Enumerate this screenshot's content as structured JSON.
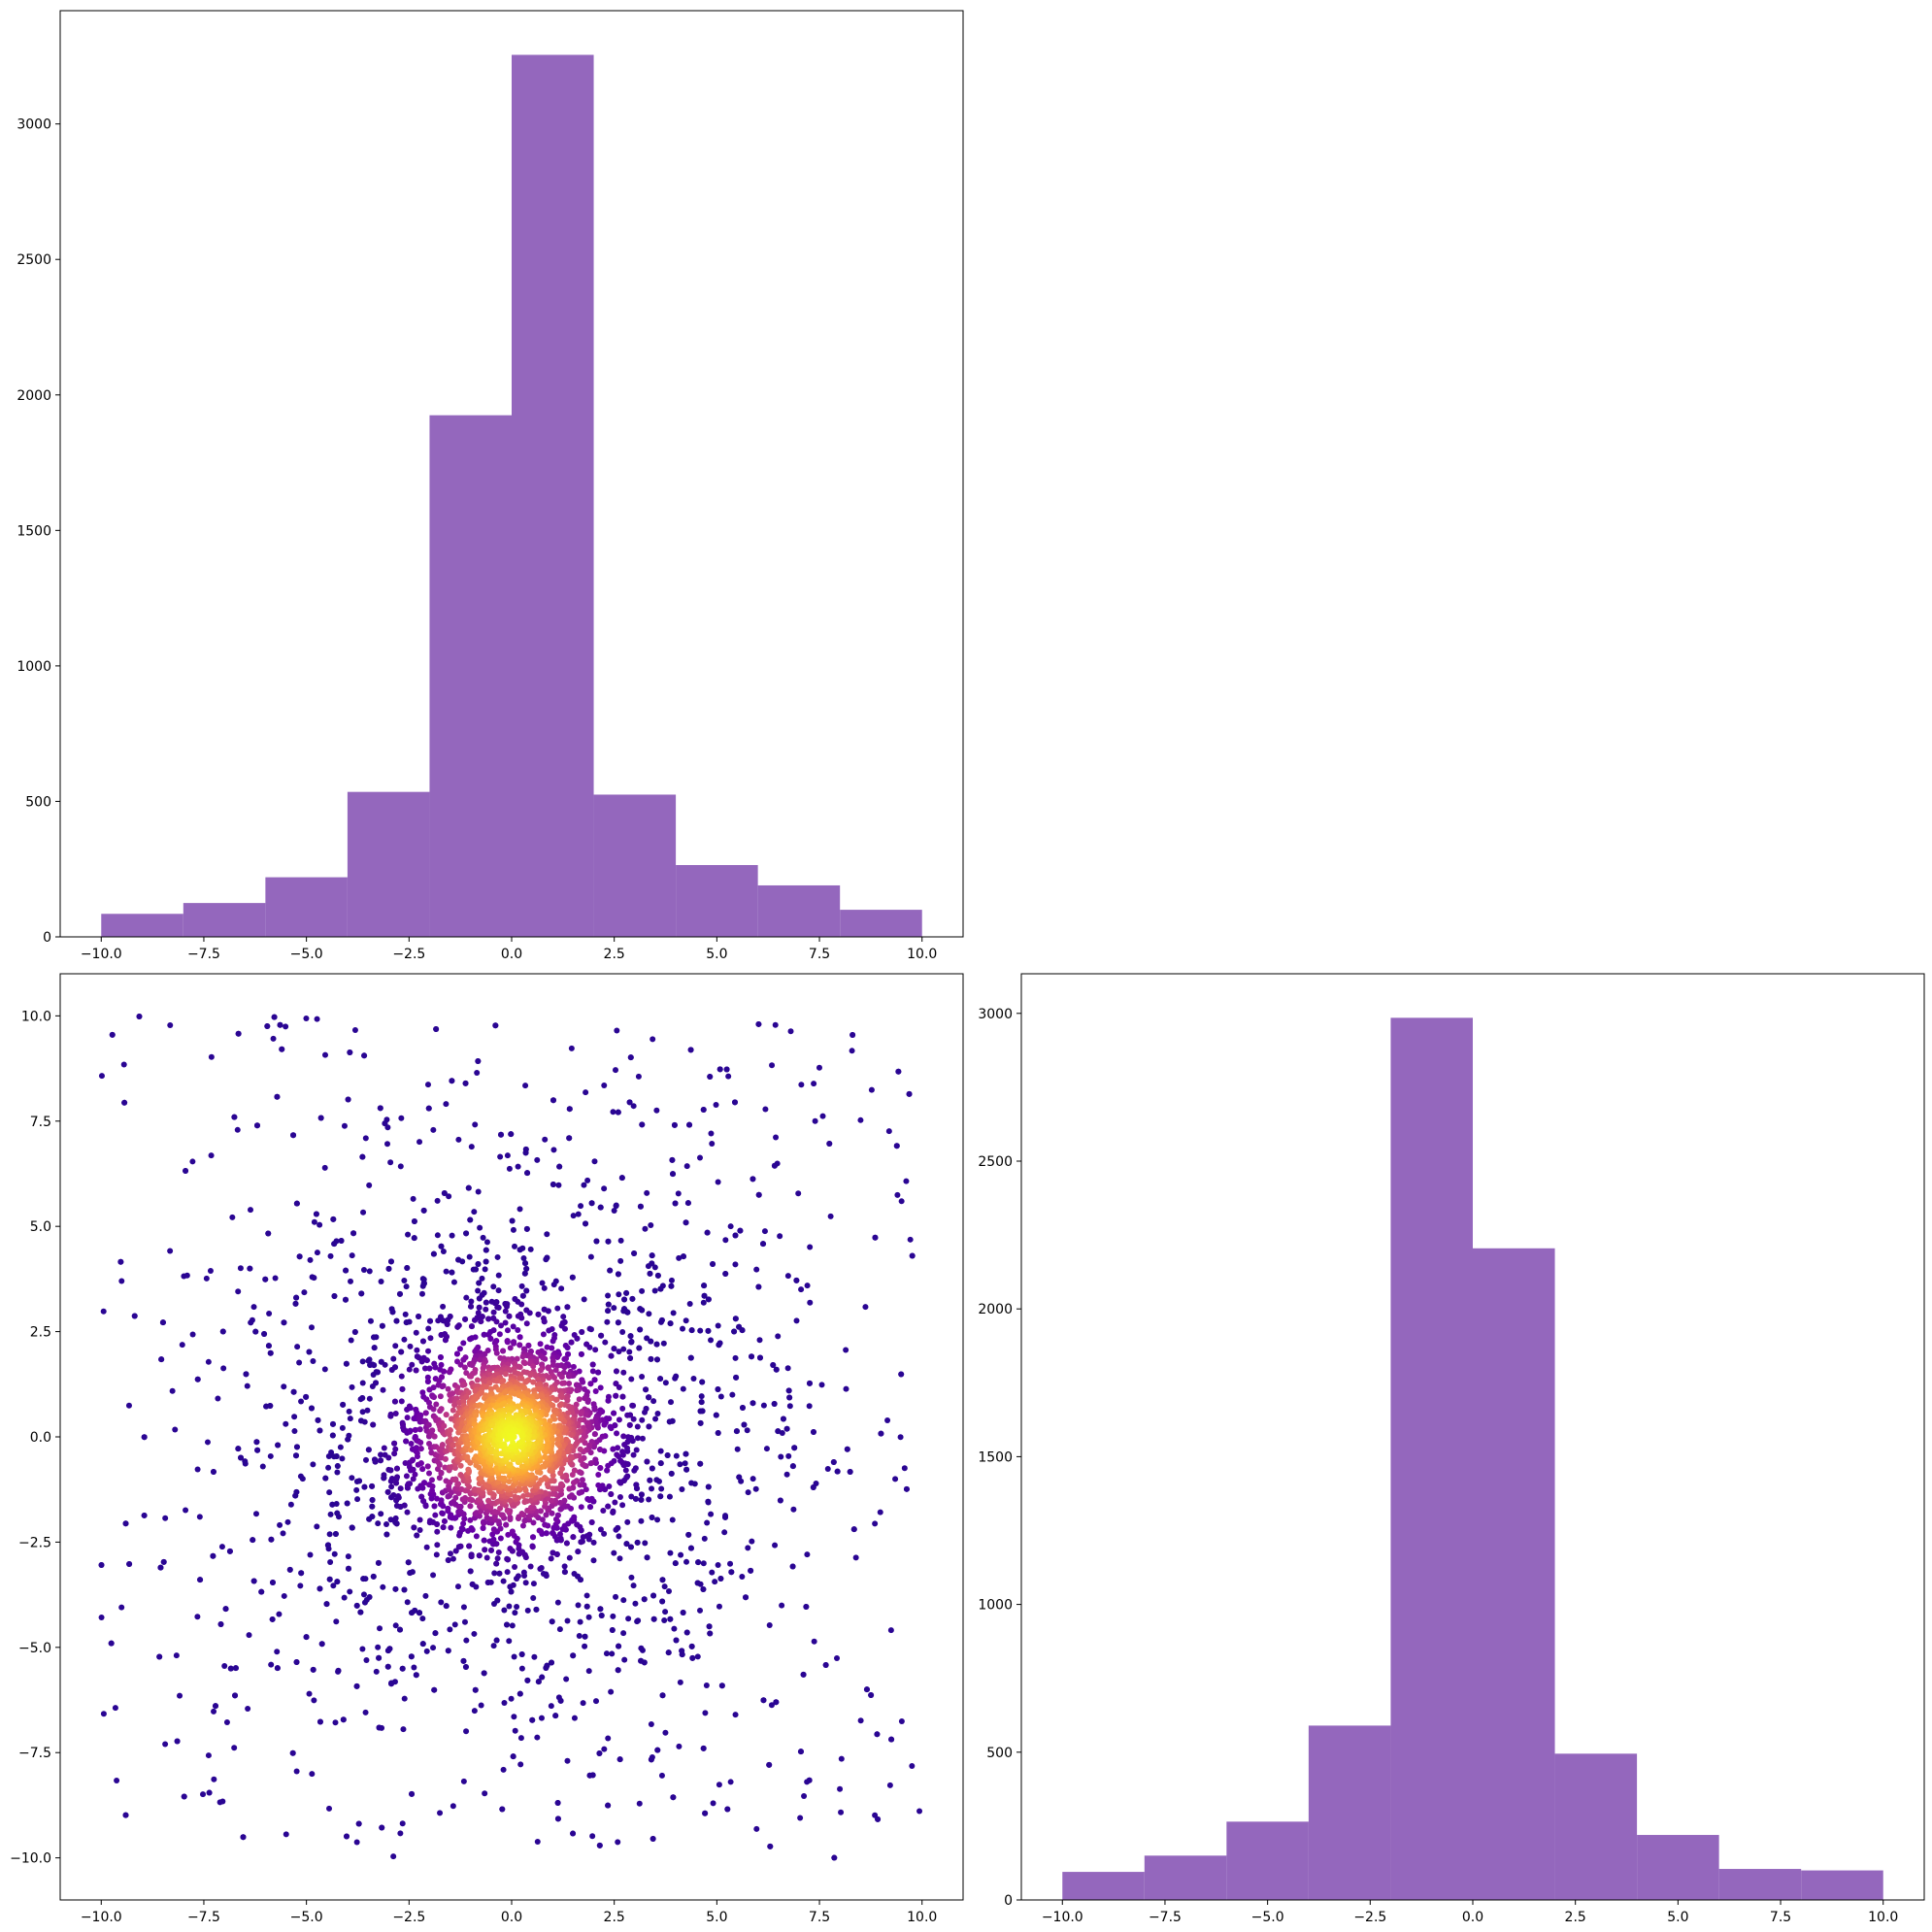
{
  "chart_data": [
    {
      "type": "bar",
      "panel": "top-left",
      "description": "histogram of x",
      "bin_edges": [
        -10,
        -8,
        -6,
        -4,
        -2,
        0,
        2,
        4,
        6,
        8,
        10
      ],
      "values": [
        85,
        125,
        220,
        535,
        1925,
        3255,
        525,
        265,
        190,
        100
      ],
      "xlim": [
        -11,
        11
      ],
      "ylim": [
        0,
        3418
      ],
      "xticks": [
        "−10.0",
        "−7.5",
        "−5.0",
        "−2.5",
        "0.0",
        "2.5",
        "5.0",
        "7.5",
        "10.0"
      ],
      "xtick_values": [
        -10,
        -7.5,
        -5,
        -2.5,
        0,
        2.5,
        5,
        7.5,
        10
      ],
      "yticks": [
        "0",
        "500",
        "1000",
        "1500",
        "2000",
        "2500",
        "3000"
      ],
      "ytick_values": [
        0,
        500,
        1000,
        1500,
        2000,
        2500,
        3000
      ],
      "bar_color": "#9467bd",
      "title": "",
      "xlabel": "",
      "ylabel": ""
    },
    {
      "type": "scatter",
      "panel": "bottom-left",
      "description": "scatter of x vs y colored by density",
      "xlim": [
        -11,
        11
      ],
      "ylim": [
        -11,
        11
      ],
      "xticks": [
        "−10.0",
        "−7.5",
        "−5.0",
        "−2.5",
        "0.0",
        "2.5",
        "5.0",
        "7.5",
        "10.0"
      ],
      "xtick_values": [
        -10,
        -7.5,
        -5,
        -2.5,
        0,
        2.5,
        5,
        7.5,
        10
      ],
      "yticks": [
        "−10.0",
        "−7.5",
        "−5.0",
        "−2.5",
        "0.0",
        "2.5",
        "5.0",
        "7.5",
        "10.0"
      ],
      "ytick_values": [
        -10,
        -7.5,
        -5,
        -2.5,
        0,
        2.5,
        5,
        7.5,
        10
      ],
      "colormap": "plasma",
      "point_color_low": "#2a0593",
      "point_color_high": "#f0f921",
      "approx_points": 5000,
      "title": "",
      "xlabel": "",
      "ylabel": ""
    },
    {
      "type": "bar",
      "panel": "bottom-right",
      "description": "histogram of y",
      "bin_edges": [
        -10,
        -8,
        -6,
        -4,
        -2,
        0,
        2,
        4,
        6,
        8,
        10
      ],
      "values": [
        95,
        150,
        265,
        590,
        2985,
        2205,
        495,
        220,
        105,
        100
      ],
      "xlim": [
        -11,
        11
      ],
      "ylim": [
        0,
        3134
      ],
      "xticks": [
        "−10.0",
        "−7.5",
        "−5.0",
        "−2.5",
        "0.0",
        "2.5",
        "5.0",
        "7.5",
        "10.0"
      ],
      "xtick_values": [
        -10,
        -7.5,
        -5,
        -2.5,
        0,
        2.5,
        5,
        7.5,
        10
      ],
      "yticks": [
        "0",
        "500",
        "1000",
        "1500",
        "2000",
        "2500",
        "3000"
      ],
      "ytick_values": [
        0,
        500,
        1000,
        1500,
        2000,
        2500,
        3000
      ],
      "bar_color": "#9467bd",
      "title": "",
      "xlabel": "",
      "ylabel": ""
    }
  ]
}
